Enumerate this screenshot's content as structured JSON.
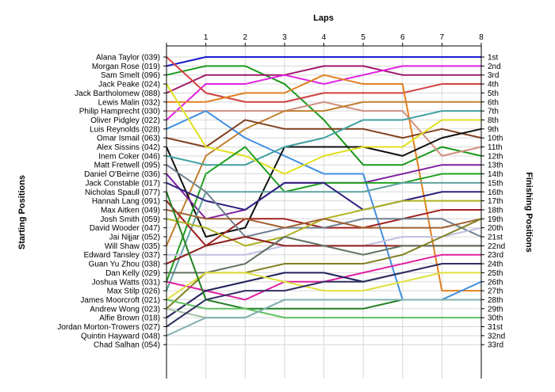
{
  "chart_data": {
    "type": "line",
    "title": "",
    "xlabel": "Laps",
    "ylabel_left": "Starting Positions",
    "ylabel_right": "Finishing Positions",
    "x": [
      0,
      1,
      2,
      3,
      4,
      5,
      6,
      7,
      8
    ],
    "x_tick_labels": [
      "1",
      "2",
      "3",
      "4",
      "5",
      "6",
      "7",
      "8"
    ],
    "y_range": [
      1,
      34
    ],
    "y_inverted": true,
    "grid": true,
    "legend": "none",
    "drivers": [
      "Alana Taylor (039)",
      "Morgan Rose (019)",
      "Sam Smelt (096)",
      "Jack Peake (024)",
      "Jack Bartholomew (088)",
      "Lewis Malin (032)",
      "Philip Hamprecht (030)",
      "Oliver Pidgley (022)",
      "Luis Reynolds (028)",
      "Omar Ismail (063)",
      "Alex Sissins (042)",
      "Inem Coker (046)",
      "Matt Fretwell (095)",
      "Daniel O'Beirne (036)",
      "Jack Constable (017)",
      "Nicholas Spaull (077)",
      "Hannah Lang (091)",
      "Max Aitken (049)",
      "Josh Smith (059)",
      "David Wooder (047)",
      "Jai Nijjar (052)",
      "Will Shaw (035)",
      "Edward Tansley (037)",
      "Guan Yu Zhou (038)",
      "Dan Kelly (029)",
      "Joshua Watts (031)",
      "Max Stilp (026)",
      "James Moorcroft (021)",
      "Andrew Wong (023)",
      "Alfie Brown (018)",
      "Jordan Morton-Trowers (027)",
      "Quintin Hayward (048)",
      "Chad Salhan (054)"
    ],
    "finishing_labels": [
      "1st",
      "2nd",
      "3rd",
      "4th",
      "5th",
      "6th",
      "7th",
      "8th",
      "9th",
      "10th",
      "11th",
      "12th",
      "13th",
      "14th",
      "15th",
      "16th",
      "17th",
      "18th",
      "19th",
      "20th",
      "21st",
      "22nd",
      "23rd",
      "24th",
      "25th",
      "26th",
      "27th",
      "28th",
      "29th",
      "30th",
      "31st",
      "32nd",
      "33rd"
    ],
    "series": [
      {
        "color": "#1a1ad0",
        "values": [
          2,
          1,
          1,
          1,
          1,
          1,
          1,
          1,
          1
        ]
      },
      {
        "color": "#1a9a1a",
        "values": [
          3,
          2,
          2,
          4,
          8,
          13,
          13,
          11,
          12
        ]
      },
      {
        "color": "#a01a6a",
        "values": [
          5,
          3,
          3,
          3,
          2,
          2,
          3,
          3,
          3
        ]
      },
      {
        "color": "#e020e0",
        "values": [
          8,
          4,
          4,
          3,
          4,
          3,
          2,
          2,
          2
        ]
      },
      {
        "color": "#d04040",
        "values": [
          1,
          5,
          6,
          6,
          5,
          5,
          5,
          4,
          4
        ]
      },
      {
        "color": "#e08020",
        "values": [
          6,
          6,
          5,
          5,
          3,
          4,
          4,
          27,
          27
        ]
      },
      {
        "color": "#d09080",
        "values": [
          7,
          7,
          7,
          7,
          6,
          7,
          7,
          12,
          11
        ]
      },
      {
        "color": "#c08030",
        "values": [
          22,
          12,
          9,
          7,
          7,
          6,
          6,
          6,
          6
        ]
      },
      {
        "color": "#4090e0",
        "values": [
          9,
          7,
          10,
          12,
          14,
          14,
          28,
          28,
          26
        ]
      },
      {
        "color": "#804020",
        "values": [
          10,
          11,
          8,
          9,
          9,
          9,
          10,
          9,
          10
        ]
      },
      {
        "color": "#101010",
        "values": [
          11,
          21,
          20,
          11,
          11,
          11,
          12,
          10,
          9
        ]
      },
      {
        "color": "#40a0a0",
        "values": [
          12,
          13,
          13,
          11,
          10,
          8,
          8,
          7,
          7
        ]
      },
      {
        "color": "#e0e020",
        "values": [
          4,
          11,
          12,
          14,
          12,
          11,
          11,
          8,
          8
        ]
      },
      {
        "color": "#8020a0",
        "values": [
          14,
          19,
          18,
          15,
          15,
          15,
          14,
          13,
          13
        ]
      },
      {
        "color": "#20a020",
        "values": [
          26,
          14,
          11,
          16,
          15,
          15,
          15,
          14,
          14
        ]
      },
      {
        "color": "#60a0a0",
        "values": [
          27,
          16,
          16,
          16,
          16,
          16,
          15,
          15,
          15
        ]
      },
      {
        "color": "#302080",
        "values": [
          15,
          17,
          18,
          15,
          15,
          18,
          17,
          16,
          16
        ]
      },
      {
        "color": "#a02020",
        "values": [
          17,
          22,
          19,
          19,
          20,
          20,
          19,
          18,
          18
        ]
      },
      {
        "color": "#708090",
        "values": [
          13,
          16,
          21,
          20,
          20,
          19,
          19,
          19,
          21
        ]
      },
      {
        "color": "#b0b020",
        "values": [
          19,
          20,
          22,
          21,
          19,
          18,
          17,
          17,
          17
        ]
      },
      {
        "color": "#a06030",
        "values": [
          18,
          19,
          19,
          20,
          19,
          20,
          20,
          20,
          19
        ]
      },
      {
        "color": "#c0c0e0",
        "values": [
          23,
          23,
          23,
          22,
          22,
          22,
          21,
          21,
          20
        ]
      },
      {
        "color": "#902020",
        "values": [
          24,
          22,
          21,
          22,
          22,
          22,
          22,
          22,
          22
        ]
      },
      {
        "color": "#607060",
        "values": [
          25,
          25,
          24,
          21,
          22,
          23,
          22,
          22,
          22
        ]
      },
      {
        "color": "#808020",
        "values": [
          29,
          25,
          25,
          24,
          24,
          24,
          23,
          21,
          19
        ]
      },
      {
        "color": "#e020a0",
        "values": [
          26,
          27,
          28,
          26,
          26,
          25,
          24,
          23,
          23
        ]
      },
      {
        "color": "#20205a",
        "values": [
          30,
          27,
          26,
          25,
          25,
          26,
          25,
          24,
          24
        ]
      },
      {
        "color": "#e0e040",
        "values": [
          28,
          25,
          25,
          26,
          27,
          27,
          26,
          25,
          25
        ]
      },
      {
        "color": "#a0c0a0",
        "values": [
          29,
          30,
          30,
          28,
          28,
          28,
          28,
          28,
          28
        ]
      },
      {
        "color": "#208020",
        "values": [
          16,
          28,
          29,
          29,
          29,
          29,
          28,
          28,
          28
        ]
      },
      {
        "color": "#60c060",
        "values": [
          28,
          29,
          29,
          30,
          30,
          30,
          30,
          30,
          30
        ]
      },
      {
        "color": "#303060",
        "values": [
          31,
          28,
          27,
          27,
          26,
          26,
          25,
          24,
          24
        ]
      },
      {
        "color": "#80b0b0",
        "values": [
          32,
          30,
          30,
          28,
          28,
          28,
          28,
          28,
          28
        ]
      }
    ]
  }
}
